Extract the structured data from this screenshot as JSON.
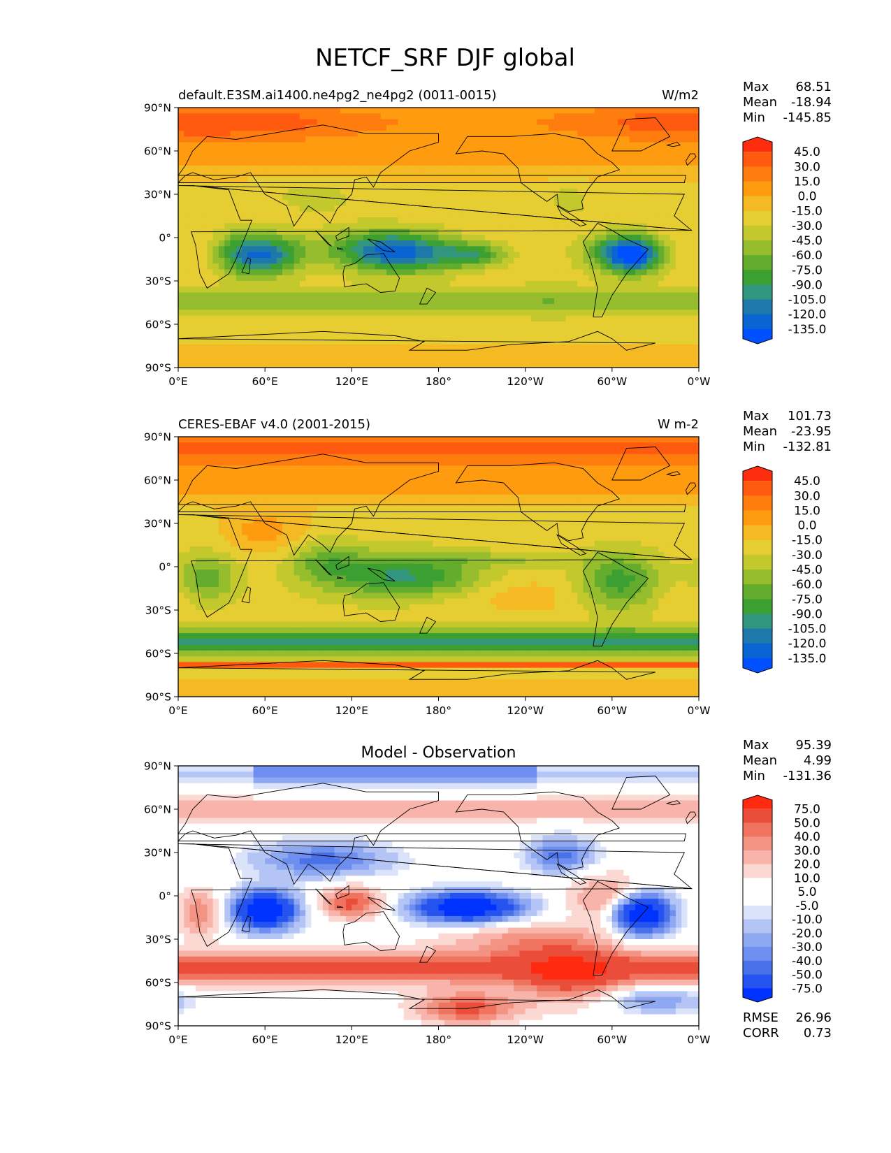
{
  "figure_title": "NETCF_SRF DJF global",
  "colors": {
    "main_cmap": [
      "#0050ff",
      "#0a64d2",
      "#1e78aa",
      "#32967e",
      "#3c9f32",
      "#64ac2d",
      "#96bd2d",
      "#c3c82d",
      "#e6cd32",
      "#f5b923",
      "#ff9b0f",
      "#ff7d0f",
      "#ff5a0f",
      "#ff2d0f"
    ],
    "diff_cmap": [
      "#0033ff",
      "#2553f0",
      "#4a72e8",
      "#6e8ff0",
      "#8fa8f2",
      "#b4c4f5",
      "#dbe3fb",
      "#ffffff",
      "#ffffff",
      "#fcd8d3",
      "#f8b4aa",
      "#f39382",
      "#ef735f",
      "#ea4e3a",
      "#ff2a10"
    ],
    "land_outline": "#000000"
  },
  "chart_data": [
    {
      "type": "heatmap",
      "id": "test",
      "title_left": "default.E3SM.ai1400.ne4pg2_ne4pg2 (0011-0015)",
      "title_right": "W/m2",
      "stats": {
        "Max": "68.51",
        "Mean": "-18.94",
        "Min": "-145.85"
      },
      "xticks": [
        "0°E",
        "60°E",
        "120°E",
        "180°",
        "120°W",
        "60°W",
        "0°W"
      ],
      "yticks": [
        "90°N",
        "60°N",
        "30°N",
        "0°",
        "30°S",
        "60°S",
        "90°S"
      ],
      "xlim": [
        0,
        360
      ],
      "ylim": [
        -90,
        90
      ],
      "colorbar_levels": [
        "45.0",
        "30.0",
        "15.0",
        "0.0",
        "-15.0",
        "-30.0",
        "-45.0",
        "-60.0",
        "-75.0",
        "-90.0",
        "-105.0",
        "-120.0",
        "-135.0"
      ],
      "colorbar_extend": "both"
    },
    {
      "type": "heatmap",
      "id": "reference",
      "title_left": "CERES-EBAF v4.0 (2001-2015)",
      "title_right": "W m-2",
      "stats": {
        "Max": "101.73",
        "Mean": "-23.95",
        "Min": "-132.81"
      },
      "xticks": [
        "0°E",
        "60°E",
        "120°E",
        "180°",
        "120°W",
        "60°W",
        "0°W"
      ],
      "yticks": [
        "90°N",
        "60°N",
        "30°N",
        "0°",
        "30°S",
        "60°S",
        "90°S"
      ],
      "xlim": [
        0,
        360
      ],
      "ylim": [
        -90,
        90
      ],
      "colorbar_levels": [
        "45.0",
        "30.0",
        "15.0",
        "0.0",
        "-15.0",
        "-30.0",
        "-45.0",
        "-60.0",
        "-75.0",
        "-90.0",
        "-105.0",
        "-120.0",
        "-135.0"
      ],
      "colorbar_extend": "both"
    },
    {
      "type": "heatmap",
      "id": "difference",
      "title_center": "Model - Observation",
      "stats": {
        "Max": "95.39",
        "Mean": "4.99",
        "Min": "-131.36"
      },
      "extra_stats": {
        "RMSE": "26.96",
        "CORR": "0.73"
      },
      "xticks": [
        "0°E",
        "60°E",
        "120°E",
        "180°",
        "120°W",
        "60°W",
        "0°W"
      ],
      "yticks": [
        "90°N",
        "60°N",
        "30°N",
        "0°",
        "30°S",
        "60°S",
        "90°S"
      ],
      "xlim": [
        0,
        360
      ],
      "ylim": [
        -90,
        90
      ],
      "colorbar_levels": [
        "75.0",
        "50.0",
        "40.0",
        "30.0",
        "20.0",
        "10.0",
        "5.0",
        "-5.0",
        "-10.0",
        "-20.0",
        "-30.0",
        "-40.0",
        "-50.0",
        "-75.0"
      ],
      "colorbar_extend": "both"
    }
  ]
}
